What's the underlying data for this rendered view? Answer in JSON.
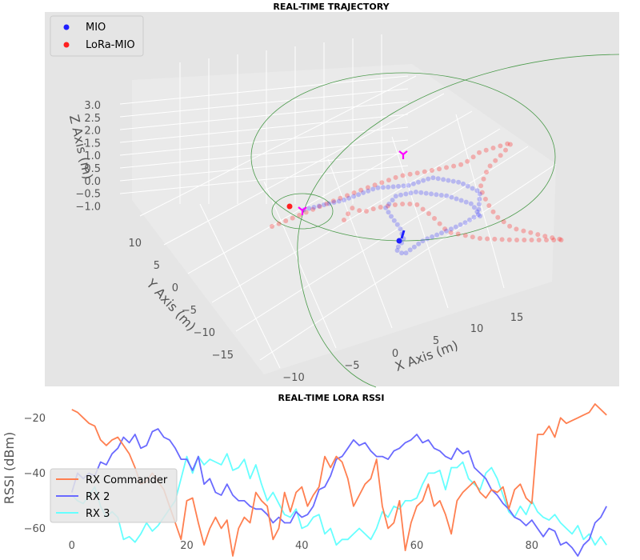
{
  "chart_data": [
    {
      "type": "scatter",
      "title": "REAL-TIME TRAJECTORY",
      "projection": "3d",
      "xlabel": "X Axis (m)",
      "ylabel": "Y Axis (m)",
      "zlabel": "Z Axis (m)",
      "x_ticks": [
        "0",
        "5",
        "10",
        "15"
      ],
      "y_ticks": [
        "10",
        "5",
        "0",
        "−5",
        "−10",
        "−15"
      ],
      "z_ticks": [
        "3.0",
        "2.5",
        "2.0",
        "1.5",
        "1.0",
        "0.5",
        "0.0",
        "−0.5",
        "−1.0"
      ],
      "extra_ticks": [
        "−10",
        "−5"
      ],
      "legend": {
        "placement": "top-left",
        "entries": [
          {
            "name": "MIO",
            "color": "#1f1fff"
          },
          {
            "name": "LoRa-MIO",
            "color": "#ff2020"
          }
        ]
      },
      "grid": true,
      "series": [
        {
          "name": "MIO",
          "color": "#1f1fff",
          "note": "trajectory loop of about 90 points around x 0–12 m, y −2–8 m"
        },
        {
          "name": "LoRa-MIO",
          "color": "#ff2020",
          "note": "trajectory of about 90 points spread over x −12–18 m"
        }
      ],
      "markers": [
        {
          "symbol": "tri_down",
          "color": "#ff00ff",
          "count": 2
        }
      ],
      "circles": [
        {
          "color": "#4a9a4a",
          "count": 3
        }
      ]
    },
    {
      "type": "line",
      "title": "REAL-TIME LORA RSSI",
      "xlabel": "",
      "ylabel": "RSSI (dBm)",
      "xlim": [
        -4,
        92
      ],
      "ylim": [
        -70,
        -15
      ],
      "x_ticks": [
        "0",
        "20",
        "40",
        "60",
        "80"
      ],
      "y_ticks": [
        "−20",
        "−40",
        "−60"
      ],
      "legend_placement": "bottom-left",
      "grid": false,
      "series": [
        {
          "name": "RX Commander",
          "color": "#ff7f50",
          "values": [
            -17,
            -18,
            -20,
            -22,
            -23,
            -28,
            -30,
            -28,
            -27,
            -30,
            -33,
            -38,
            -44,
            -43,
            -40,
            -43,
            -46,
            -52,
            -58,
            -64,
            -50,
            -49,
            -58,
            -66,
            -60,
            -56,
            -60,
            -57,
            -70,
            -60,
            -56,
            -58,
            -47,
            -50,
            -52,
            -64,
            -60,
            -47,
            -54,
            -47,
            -45,
            -52,
            -48,
            -45,
            -34,
            -38,
            -34,
            -36,
            -42,
            -52,
            -48,
            -44,
            -42,
            -35,
            -52,
            -60,
            -58,
            -50,
            -68,
            -58,
            -52,
            -50,
            -44,
            -52,
            -50,
            -55,
            -62,
            -50,
            -47,
            -45,
            -43,
            -47,
            -49,
            -46,
            -47,
            -45,
            -53,
            -46,
            -44,
            -49,
            -51,
            -26,
            -26,
            -23,
            -27,
            -20,
            -22,
            -21,
            -20,
            -19,
            -18,
            -15,
            -17,
            -19
          ]
        },
        {
          "name": "RX 2",
          "color": "#6a6aff",
          "values": [
            -47,
            -40,
            -42,
            -40,
            -41,
            -36,
            -37,
            -33,
            -31,
            -27,
            -29,
            -26,
            -31,
            -30,
            -25,
            -24,
            -27,
            -28,
            -31,
            -35,
            -35,
            -39,
            -34,
            -44,
            -42,
            -47,
            -48,
            -44,
            -48,
            -50,
            -50,
            -52,
            -53,
            -53,
            -55,
            -58,
            -56,
            -58,
            -58,
            -54,
            -56,
            -55,
            -52,
            -46,
            -45,
            -41,
            -35,
            -34,
            -31,
            -28,
            -30,
            -29,
            -32,
            -34,
            -34,
            -35,
            -32,
            -31,
            -29,
            -28,
            -26,
            -29,
            -28,
            -31,
            -32,
            -34,
            -35,
            -31,
            -33,
            -32,
            -38,
            -40,
            -42,
            -46,
            -48,
            -51,
            -53,
            -56,
            -57,
            -59,
            -57,
            -60,
            -63,
            -60,
            -61,
            -66,
            -65,
            -67,
            -70,
            -66,
            -64,
            -58,
            -56,
            -52
          ]
        },
        {
          "name": "RX 3",
          "color": "#66ffff",
          "values": [
            -48,
            -50,
            -51,
            -48,
            -45,
            -52,
            -56,
            -54,
            -56,
            -64,
            -63,
            -65,
            -62,
            -58,
            -61,
            -59,
            -56,
            -53,
            -50,
            -42,
            -34,
            -40,
            -34,
            -37,
            -35,
            -36,
            -37,
            -33,
            -39,
            -38,
            -35,
            -42,
            -37,
            -44,
            -50,
            -47,
            -51,
            -55,
            -56,
            -53,
            -60,
            -59,
            -56,
            -55,
            -62,
            -60,
            -66,
            -64,
            -64,
            -62,
            -60,
            -62,
            -64,
            -60,
            -54,
            -56,
            -52,
            -53,
            -50,
            -50,
            -49,
            -44,
            -40,
            -40,
            -39,
            -46,
            -38,
            -38,
            -36,
            -42,
            -44,
            -46,
            -40,
            -38,
            -42,
            -48,
            -54,
            -56,
            -52,
            -55,
            -50,
            -54,
            -56,
            -57,
            -55,
            -58,
            -60,
            -62,
            -59,
            -64,
            -62,
            -66,
            -63,
            -66
          ]
        }
      ]
    }
  ]
}
